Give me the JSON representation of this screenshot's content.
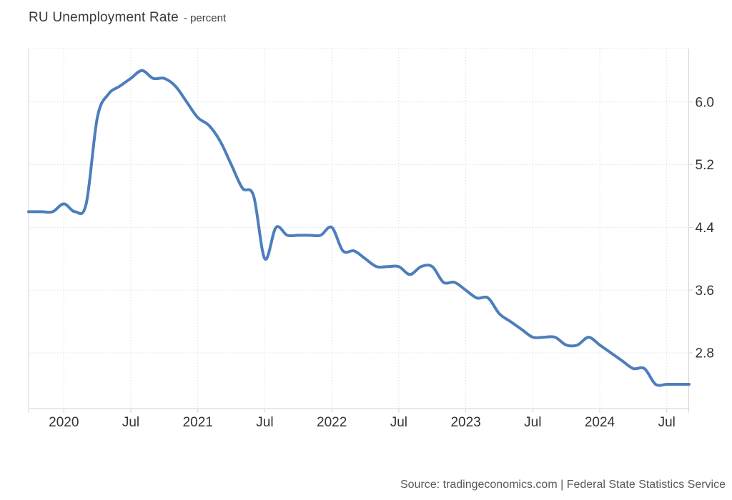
{
  "header": {
    "title": "RU Unemployment Rate",
    "subtitle": "- percent"
  },
  "footer": {
    "source": "Source: tradingeconomics.com | Federal State Statistics Service"
  },
  "chart_data": {
    "type": "line",
    "title": "RU Unemployment Rate",
    "ylabel": "percent",
    "legend": "none",
    "grid": "dotted",
    "line_color": "#4d7ebc",
    "axis_frame_color": "#d4d4d4",
    "gridline_color": "#e0e0e0",
    "label_color": "#333333",
    "background": "#ffffff",
    "ylim": [
      2.09,
      6.68
    ],
    "y_ticks": [
      6.0,
      5.2,
      4.4,
      3.6,
      2.8
    ],
    "y_tick_labels": [
      "6.0",
      "5.2",
      "4.4",
      "3.6",
      "2.8"
    ],
    "x_tick_labels": [
      "2020",
      "Jul",
      "2021",
      "Jul",
      "2022",
      "Jul",
      "2023",
      "Jul",
      "2024",
      "Jul"
    ],
    "x_tick_month_indices": [
      3,
      9,
      15,
      21,
      27,
      33,
      39,
      45,
      51,
      57
    ],
    "months": [
      "2019-10",
      "2019-11",
      "2019-12",
      "2020-01",
      "2020-02",
      "2020-03",
      "2020-04",
      "2020-05",
      "2020-06",
      "2020-07",
      "2020-08",
      "2020-09",
      "2020-10",
      "2020-11",
      "2020-12",
      "2021-01",
      "2021-02",
      "2021-03",
      "2021-04",
      "2021-05",
      "2021-06",
      "2021-07",
      "2021-08",
      "2021-09",
      "2021-10",
      "2021-11",
      "2021-12",
      "2022-01",
      "2022-02",
      "2022-03",
      "2022-04",
      "2022-05",
      "2022-06",
      "2022-07",
      "2022-08",
      "2022-09",
      "2022-10",
      "2022-11",
      "2022-12",
      "2023-01",
      "2023-02",
      "2023-03",
      "2023-04",
      "2023-05",
      "2023-06",
      "2023-07",
      "2023-08",
      "2023-09",
      "2023-10",
      "2023-11",
      "2023-12",
      "2024-01",
      "2024-02",
      "2024-03",
      "2024-04",
      "2024-05",
      "2024-06",
      "2024-07",
      "2024-08",
      "2024-09"
    ],
    "values": [
      4.6,
      4.6,
      4.6,
      4.7,
      4.6,
      4.7,
      5.8,
      6.1,
      6.2,
      6.3,
      6.4,
      6.3,
      6.3,
      6.2,
      6.0,
      5.8,
      5.7,
      5.5,
      5.2,
      4.9,
      4.8,
      4.0,
      4.4,
      4.3,
      4.3,
      4.3,
      4.3,
      4.4,
      4.1,
      4.1,
      4.0,
      3.9,
      3.9,
      3.9,
      3.8,
      3.9,
      3.9,
      3.7,
      3.7,
      3.6,
      3.5,
      3.5,
      3.3,
      3.2,
      3.1,
      3.0,
      3.0,
      3.0,
      2.9,
      2.9,
      3.0,
      2.9,
      2.8,
      2.7,
      2.6,
      2.6,
      2.4,
      2.4,
      2.4,
      2.4
    ]
  }
}
